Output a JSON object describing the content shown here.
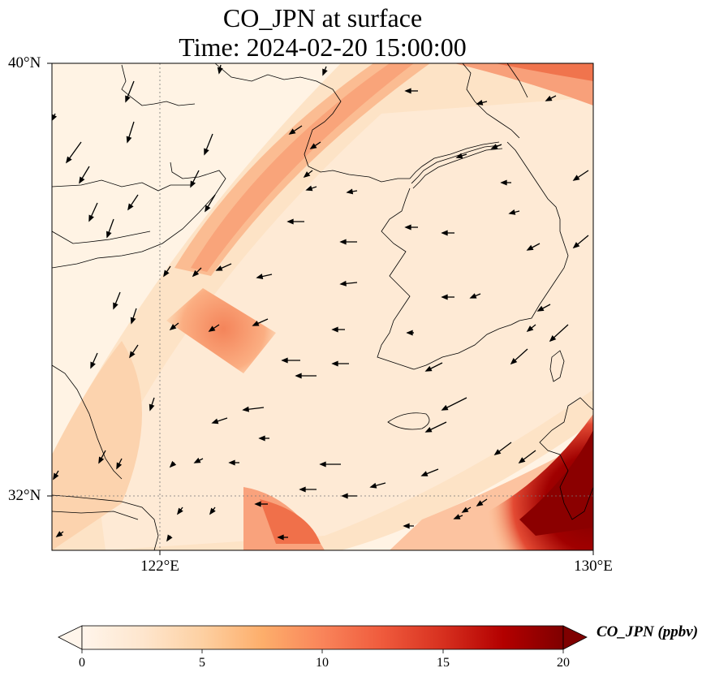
{
  "title": {
    "line1": "CO_JPN at surface",
    "line2": "Time: 2024-02-20 15:00:00"
  },
  "axes": {
    "lat_labels": [
      "40°N",
      "32°N"
    ],
    "lon_labels": [
      "122°E",
      "130°E"
    ],
    "lon_range": [
      120,
      130
    ],
    "lat_range": [
      31,
      40
    ],
    "gridlines": "dotted at 122°E and 32°N"
  },
  "colorbar": {
    "label": "CO_JPN (ppbv)",
    "ticks": [
      "0",
      "5",
      "10",
      "15",
      "20"
    ],
    "range": [
      0,
      20
    ],
    "extend": "both",
    "colormap": [
      "#fff5eb",
      "#fee6ce",
      "#fdd0a2",
      "#fdae6b",
      "#fd8d3c",
      "#f16913",
      "#d94801",
      "#a63603",
      "#7f2704"
    ]
  },
  "chart_data": {
    "type": "heatmap",
    "variable": "CO_JPN",
    "units": "ppbv",
    "level": "surface",
    "time": "2024-02-20 15:00:00",
    "xlabel": "",
    "ylabel": "",
    "xlim": [
      120,
      130
    ],
    "ylim": [
      31,
      40
    ],
    "plumes": [
      {
        "name": "high band southeast corner",
        "lon": [
          128.5,
          130
        ],
        "lat": [
          31.5,
          33.5
        ],
        "value": 20
      },
      {
        "name": "band along northwest",
        "lon": [
          121.5,
          129.5
        ],
        "lat": [
          34.5,
          40
        ],
        "value": 7
      },
      {
        "name": "patch over Yellow Sea",
        "lon": [
          122,
          124
        ],
        "lat": [
          34,
          35.5
        ],
        "value": 9
      },
      {
        "name": "south band",
        "lon": [
          124,
          129
        ],
        "lat": [
          31,
          32.5
        ],
        "value": 8
      }
    ],
    "wind_vectors": "present (black arrows, predominantly toward west/southwest)"
  }
}
